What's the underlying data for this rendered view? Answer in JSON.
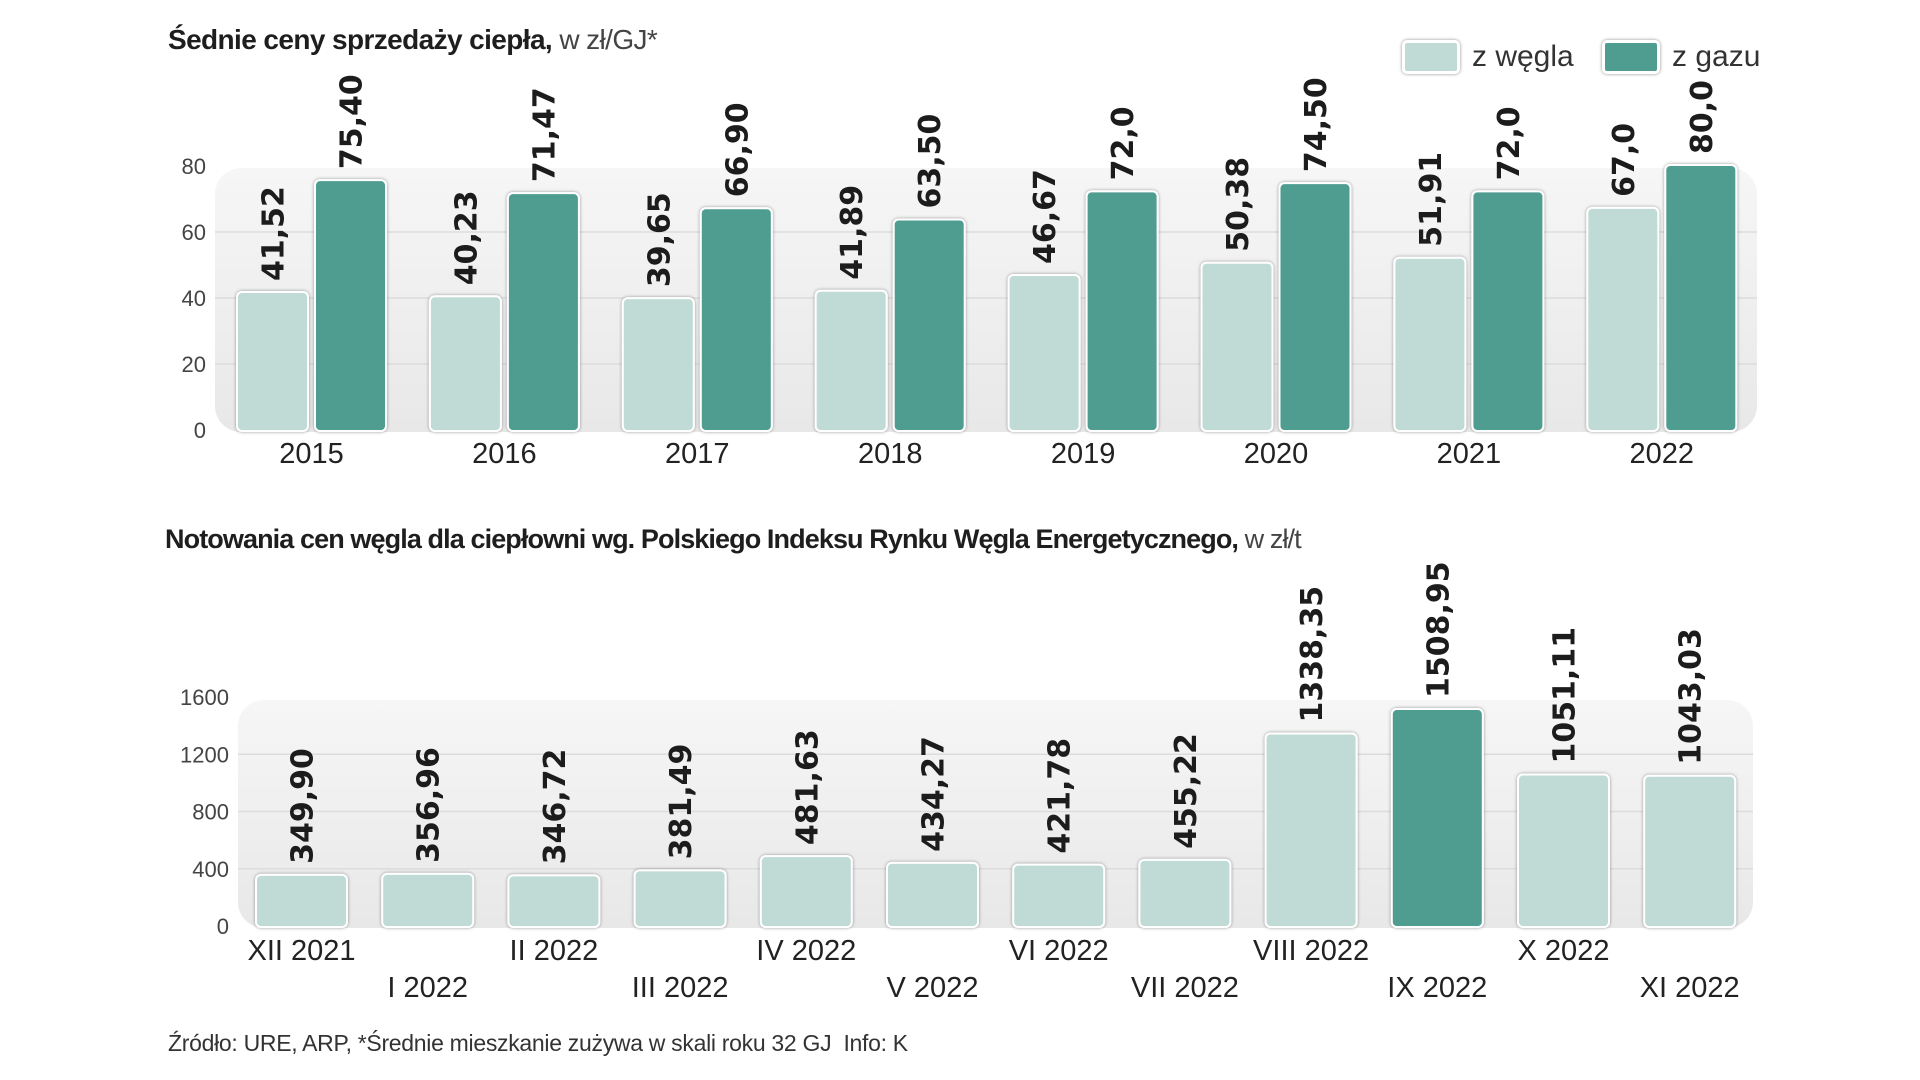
{
  "colors": {
    "coal": "#c0dbd6",
    "gas": "#4f9c91",
    "plot_bg": "#efefef",
    "grid": "#dcdcdc"
  },
  "legend": {
    "coal": "z węgla",
    "gas": "z gazu"
  },
  "chart_data": [
    {
      "type": "bar",
      "title": "Śednie ceny sprzedaży ciepła,",
      "title_unit": "w zł/GJ*",
      "xlabel": "",
      "ylabel": "",
      "ylim": [
        0,
        80
      ],
      "yticks": [
        "0",
        "20",
        "40",
        "60",
        "80"
      ],
      "ytick_values": [
        0,
        20,
        40,
        60,
        80
      ],
      "grid": true,
      "legend_position": "top-right",
      "categories": [
        "2015",
        "2016",
        "2017",
        "2018",
        "2019",
        "2020",
        "2021",
        "2022"
      ],
      "series": [
        {
          "name": "z węgla",
          "values": [
            41.52,
            40.23,
            39.65,
            41.89,
            46.67,
            50.38,
            51.91,
            67.0
          ],
          "labels": [
            "41,52",
            "40,23",
            "39,65",
            "41,89",
            "46,67",
            "50,38",
            "51,91",
            "67,0"
          ]
        },
        {
          "name": "z gazu",
          "values": [
            75.4,
            71.47,
            66.9,
            63.5,
            72.0,
            74.5,
            72.0,
            80.0
          ],
          "labels": [
            "75,40",
            "71,47",
            "66,90",
            "63,50",
            "72,0",
            "74,50",
            "72,0",
            "80,0"
          ]
        }
      ]
    },
    {
      "type": "bar",
      "title": "Notowania cen węgla dla ciepłowni wg. Polskiego Indeksu Rynku Węgla Energetycznego,",
      "title_unit": "w zł/t",
      "xlabel": "",
      "ylabel": "",
      "ylim": [
        0,
        1600
      ],
      "yticks": [
        "0",
        "400",
        "800",
        "1200",
        "1600"
      ],
      "ytick_values": [
        0,
        400,
        800,
        1200,
        1600
      ],
      "grid": true,
      "categories": [
        "XII 2021",
        "I 2022",
        "II 2022",
        "III 2022",
        "IV 2022",
        "V 2022",
        "VI 2022",
        "VII 2022",
        "VIII 2022",
        "IX 2022",
        "X 2022",
        "XI 2022"
      ],
      "values": [
        349.9,
        356.96,
        346.72,
        381.49,
        481.63,
        434.27,
        421.78,
        455.22,
        1338.35,
        1508.95,
        1051.11,
        1043.03
      ],
      "labels": [
        "349,90",
        "356,96",
        "346,72",
        "381,49",
        "481,63",
        "434,27",
        "421,78",
        "455,22",
        "1338,35",
        "1508,95",
        "1051,11",
        "1043,03"
      ],
      "highlight_index": 9
    }
  ],
  "footer": "Źródło: URE, ARP, *Średnie mieszkanie zużywa w skali roku 32 GJ  Info: K"
}
